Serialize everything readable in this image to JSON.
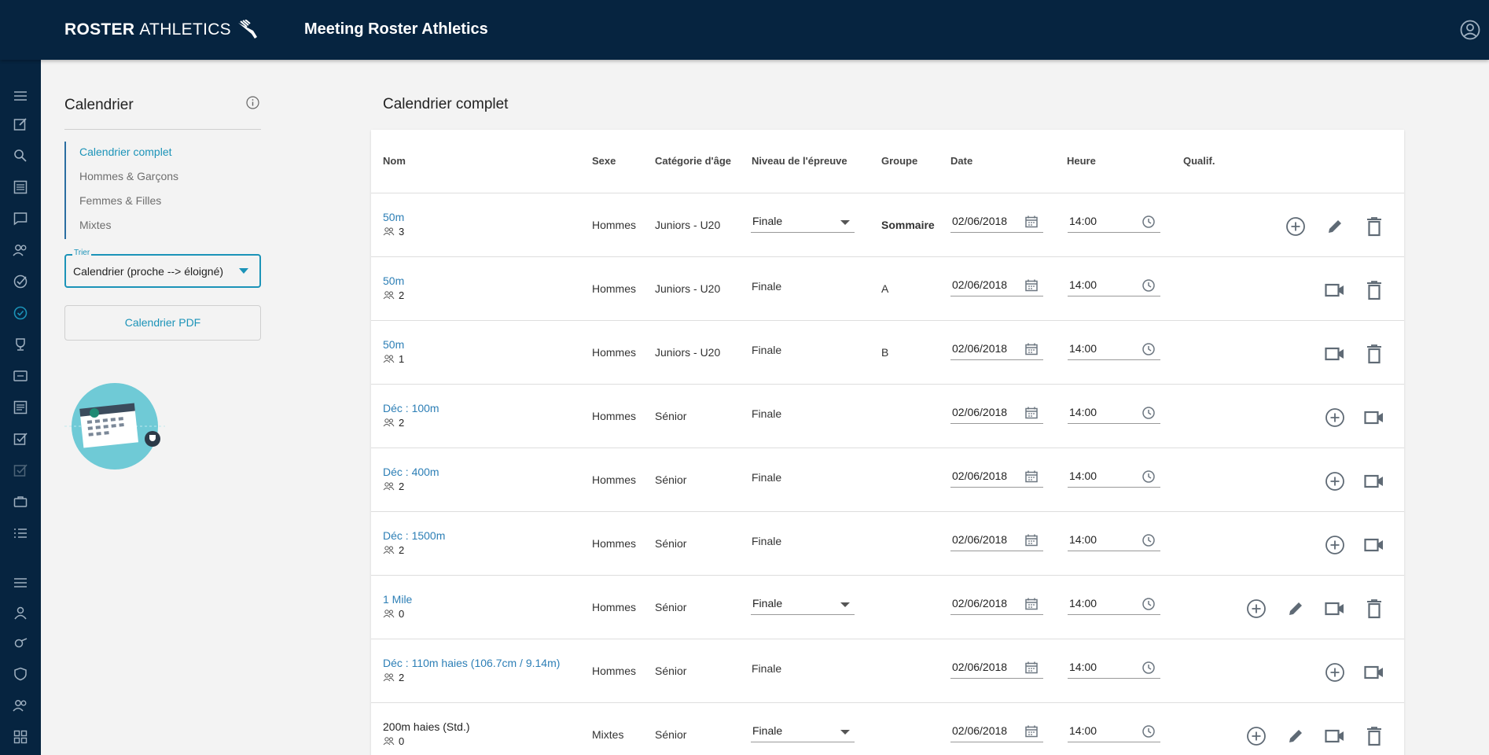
{
  "brand": {
    "logo_bold": "ROSTER",
    "logo_light": "ATHLETICS",
    "app_title": "Meeting Roster Athletics"
  },
  "sidebar": {
    "title": "Calendrier",
    "nav": [
      "Calendrier complet",
      "Hommes & Garçons",
      "Femmes & Filles",
      "Mixtes"
    ],
    "sort": {
      "label": "Trier",
      "value": "Calendrier (proche --> éloigné)"
    },
    "pdf_button": "Calendrier PDF"
  },
  "main": {
    "title": "Calendrier complet",
    "columns": [
      "Nom",
      "Sexe",
      "Catégorie d'âge",
      "Niveau de l'épreuve",
      "Groupe",
      "Date",
      "Heure",
      "Qualif."
    ],
    "rows": [
      {
        "name": "50m",
        "count": "3",
        "sex": "Hommes",
        "cat": "Juniors - U20",
        "level": "Finale",
        "level_select": true,
        "group": "Sommaire",
        "date": "02/06/2018",
        "time": "14:00"
      },
      {
        "name": "50m",
        "count": "2",
        "sex": "Hommes",
        "cat": "Juniors - U20",
        "level": "Finale",
        "level_select": false,
        "group": "A",
        "date": "02/06/2018",
        "time": "14:00"
      },
      {
        "name": "50m",
        "count": "1",
        "sex": "Hommes",
        "cat": "Juniors - U20",
        "level": "Finale",
        "level_select": false,
        "group": "B",
        "date": "02/06/2018",
        "time": "14:00"
      },
      {
        "name": "Déc : 100m",
        "count": "2",
        "sex": "Hommes",
        "cat": "Sénior",
        "level": "Finale",
        "level_select": false,
        "group": "",
        "date": "02/06/2018",
        "time": "14:00"
      },
      {
        "name": "Déc : 400m",
        "count": "2",
        "sex": "Hommes",
        "cat": "Sénior",
        "level": "Finale",
        "level_select": false,
        "group": "",
        "date": "02/06/2018",
        "time": "14:00"
      },
      {
        "name": "Déc : 1500m",
        "count": "2",
        "sex": "Hommes",
        "cat": "Sénior",
        "level": "Finale",
        "level_select": false,
        "group": "",
        "date": "02/06/2018",
        "time": "14:00"
      },
      {
        "name": "1 Mile",
        "count": "0",
        "sex": "Hommes",
        "cat": "Sénior",
        "level": "Finale",
        "level_select": true,
        "group": "",
        "date": "02/06/2018",
        "time": "14:00"
      },
      {
        "name": "Déc : 110m haies (106.7cm / 9.14m)",
        "count": "2",
        "sex": "Hommes",
        "cat": "Sénior",
        "level": "Finale",
        "level_select": false,
        "group": "",
        "date": "02/06/2018",
        "time": "14:00"
      },
      {
        "name": "200m haies (Std.)",
        "count": "0",
        "sex": "Mixtes",
        "cat": "Sénior",
        "level": "Finale",
        "level_select": true,
        "group": "",
        "date": "02/06/2018",
        "time": "14:00"
      }
    ]
  },
  "colors": {
    "topbar": "#062440",
    "accent": "#1b93b8",
    "link": "#2d7fb6"
  }
}
